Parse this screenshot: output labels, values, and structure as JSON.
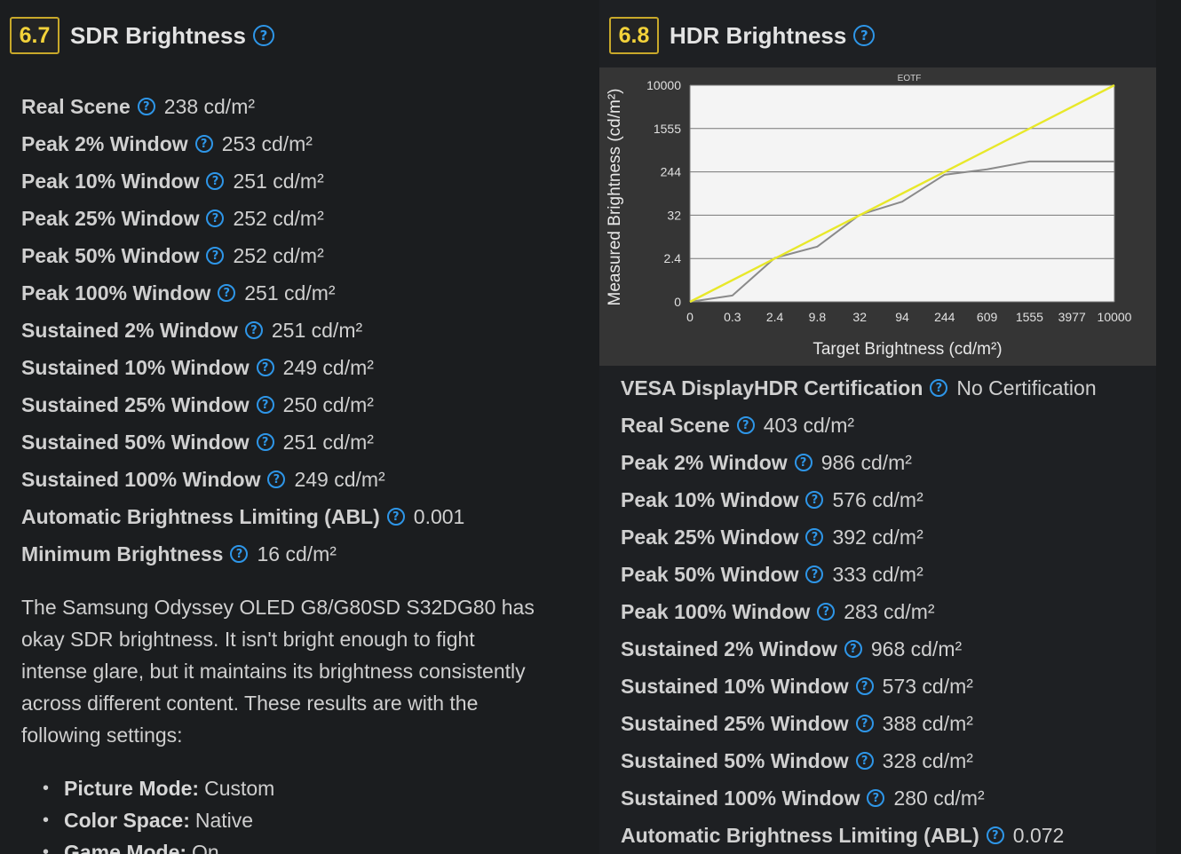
{
  "sdr": {
    "score": "6.7",
    "title": "SDR Brightness",
    "rows": [
      {
        "label": "Real Scene",
        "value": "238 cd/m²"
      },
      {
        "label": "Peak 2% Window",
        "value": "253 cd/m²"
      },
      {
        "label": "Peak 10% Window",
        "value": "251 cd/m²"
      },
      {
        "label": "Peak 25% Window",
        "value": "252 cd/m²"
      },
      {
        "label": "Peak 50% Window",
        "value": "252 cd/m²"
      },
      {
        "label": "Peak 100% Window",
        "value": "251 cd/m²"
      },
      {
        "label": "Sustained 2% Window",
        "value": "251 cd/m²"
      },
      {
        "label": "Sustained 10% Window",
        "value": "249 cd/m²"
      },
      {
        "label": "Sustained 25% Window",
        "value": "250 cd/m²"
      },
      {
        "label": "Sustained 50% Window",
        "value": "251 cd/m²"
      },
      {
        "label": "Sustained 100% Window",
        "value": "249 cd/m²"
      },
      {
        "label": "Automatic Brightness Limiting (ABL)",
        "value": "0.001"
      },
      {
        "label": "Minimum Brightness",
        "value": "16 cd/m²"
      }
    ],
    "description": "The Samsung Odyssey OLED G8/G80SD S32DG80 has okay SDR brightness. It isn't bright enough to fight intense glare, but it maintains its brightness consistently across different content. These results are with the following settings:",
    "settings": [
      {
        "label": "Picture Mode:",
        "value": "Custom"
      },
      {
        "label": "Color Space:",
        "value": "Native"
      },
      {
        "label": "Game Mode:",
        "value": "On"
      }
    ]
  },
  "hdr": {
    "score": "6.8",
    "title": "HDR Brightness",
    "rows": [
      {
        "label": "VESA DisplayHDR Certification",
        "value": "No Certification"
      },
      {
        "label": "Real Scene",
        "value": "403 cd/m²"
      },
      {
        "label": "Peak 2% Window",
        "value": "986 cd/m²"
      },
      {
        "label": "Peak 10% Window",
        "value": "576 cd/m²"
      },
      {
        "label": "Peak 25% Window",
        "value": "392 cd/m²"
      },
      {
        "label": "Peak 50% Window",
        "value": "333 cd/m²"
      },
      {
        "label": "Peak 100% Window",
        "value": "283 cd/m²"
      },
      {
        "label": "Sustained 2% Window",
        "value": "968 cd/m²"
      },
      {
        "label": "Sustained 10% Window",
        "value": "573 cd/m²"
      },
      {
        "label": "Sustained 25% Window",
        "value": "388 cd/m²"
      },
      {
        "label": "Sustained 50% Window",
        "value": "328 cd/m²"
      },
      {
        "label": "Sustained 100% Window",
        "value": "280 cd/m²"
      },
      {
        "label": "Automatic Brightness Limiting (ABL)",
        "value": "0.072"
      }
    ]
  },
  "help_glyph": "?",
  "bullet_glyph": "•",
  "chart_data": {
    "type": "line",
    "title": "EOTF",
    "xlabel": "Target Brightness (cd/m²)",
    "ylabel": "Measured Brightness (cd/m²)",
    "x_ticks": [
      "0",
      "0.3",
      "2.4",
      "9.8",
      "32",
      "94",
      "244",
      "609",
      "1555",
      "3977",
      "10000"
    ],
    "y_ticks": [
      "0",
      "2.4",
      "32",
      "244",
      "1555",
      "10000"
    ],
    "grid": true,
    "series": [
      {
        "color": "#e8e82a",
        "x": [
          0,
          10000
        ],
        "y": [
          0,
          10000
        ]
      },
      {
        "color": "#8a8a8a",
        "x": [
          0,
          0.3,
          2.4,
          9.8,
          32,
          94,
          244,
          609,
          1555,
          3977,
          10000
        ],
        "y": [
          0,
          0.35,
          2.8,
          10.5,
          34,
          98,
          230,
          320,
          560,
          560,
          560
        ]
      }
    ],
    "colors": {
      "ideal": "#e8e82a",
      "measured": "#8a8a8a",
      "background": "#353535",
      "plot_area": "#f4f4f4"
    }
  }
}
